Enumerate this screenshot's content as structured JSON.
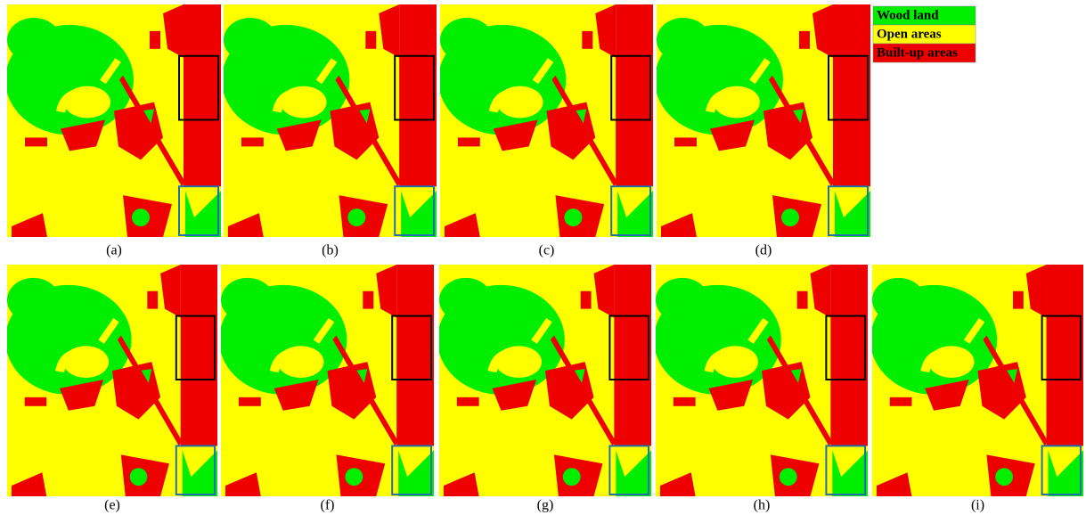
{
  "legend": [
    {
      "label": "Wood land",
      "color": "#00ee00"
    },
    {
      "label": "Open areas",
      "color": "#ffff00"
    },
    {
      "label": "Built-up areas",
      "color": "#ee0000"
    }
  ],
  "panels": [
    {
      "caption": "(a)"
    },
    {
      "caption": "(b)"
    },
    {
      "caption": "(c)"
    },
    {
      "caption": "(d)"
    },
    {
      "caption": "(e)"
    },
    {
      "caption": "(f)"
    },
    {
      "caption": "(g)"
    },
    {
      "caption": "(h)"
    },
    {
      "caption": "(i)"
    }
  ]
}
